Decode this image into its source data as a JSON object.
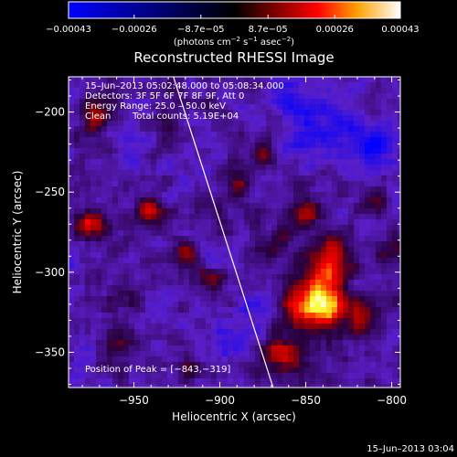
{
  "chart_data": {
    "type": "heatmap",
    "title": "Reconstructed RHESSI Image",
    "xlabel": "Heliocentric X (arcsec)",
    "ylabel": "Heliocentric Y (arcsec)",
    "xlim": [
      -988,
      -795
    ],
    "ylim": [
      -372,
      -178
    ],
    "x_ticks": [
      -950,
      -900,
      -850,
      -800
    ],
    "x_tick_labels": [
      "−950",
      "−900",
      "−850",
      "−800"
    ],
    "y_ticks": [
      -350,
      -300,
      -250,
      -200
    ],
    "y_tick_labels": [
      "−350",
      "−300",
      "−250",
      "−200"
    ],
    "colorbar": {
      "range": [
        -0.00043,
        0.00043
      ],
      "tick_values": [
        -0.00043,
        -0.00026,
        -8.7e-05,
        8.7e-05,
        0.00026,
        0.00043
      ],
      "tick_labels": [
        "−0.00043",
        "−0.00026",
        "−8.7e−05",
        "8.7e−05",
        "0.00026",
        "0.00043"
      ],
      "units_prefix": "(photons cm",
      "units_exp1": "−2",
      "units_mid": " s",
      "units_exp2": "−1",
      "units_mid2": " asec",
      "units_exp3": "−2",
      "units_suffix": ")",
      "colors": [
        "#0000ff",
        "#000000",
        "#ff0000",
        "#ffffff"
      ]
    },
    "annotations": {
      "time_range": "15–Jun–2013 05:02:48.000 to 05:08:34.000",
      "detectors": "Detectors: 3F 5F 6F 7F 8F 9F, Att 0",
      "energy": "Energy Range: 25.0 – 50.0 keV",
      "clean": "Clean",
      "counts": "Total counts: 5.19E+04",
      "peak": "Position of Peak = [−843,−319]"
    },
    "limb_line": {
      "x": [
        -927,
        -869
      ],
      "y": [
        -178,
        -372
      ],
      "color": "#ffffff"
    },
    "sources": [
      {
        "x": -843,
        "y": -319,
        "amplitude": 1.0,
        "sigma": 12
      },
      {
        "x": -836,
        "y": -290,
        "amplitude": 0.6,
        "sigma": 9
      },
      {
        "x": -851,
        "y": -262,
        "amplitude": 0.45,
        "sigma": 8
      },
      {
        "x": -817,
        "y": -330,
        "amplitude": 0.45,
        "sigma": 8
      },
      {
        "x": -862,
        "y": -352,
        "amplitude": 0.55,
        "sigma": 9
      },
      {
        "x": -920,
        "y": -288,
        "amplitude": 0.55,
        "sigma": 6
      },
      {
        "x": -905,
        "y": -305,
        "amplitude": 0.3,
        "sigma": 6
      },
      {
        "x": -970,
        "y": -200,
        "amplitude": 0.45,
        "sigma": 7
      },
      {
        "x": -975,
        "y": -270,
        "amplitude": 0.5,
        "sigma": 7
      },
      {
        "x": -940,
        "y": -262,
        "amplitude": 0.45,
        "sigma": 6
      },
      {
        "x": -890,
        "y": -245,
        "amplitude": 0.45,
        "sigma": 6
      },
      {
        "x": -875,
        "y": -225,
        "amplitude": 0.35,
        "sigma": 6
      },
      {
        "x": -868,
        "y": -282,
        "amplitude": 0.35,
        "sigma": 6
      },
      {
        "x": -955,
        "y": -315,
        "amplitude": 0.3,
        "sigma": 6
      },
      {
        "x": -960,
        "y": -345,
        "amplitude": 0.3,
        "sigma": 6
      },
      {
        "x": -810,
        "y": -255,
        "amplitude": 0.3,
        "sigma": 6
      },
      {
        "x": -800,
        "y": -290,
        "amplitude": 0.3,
        "sigma": 6
      },
      {
        "x": -915,
        "y": -360,
        "amplitude": 0.25,
        "sigma": 6
      },
      {
        "x": -930,
        "y": -210,
        "amplitude": 0.25,
        "sigma": 6
      },
      {
        "x": -840,
        "y": -210,
        "amplitude": -0.35,
        "sigma": 14
      },
      {
        "x": -812,
        "y": -225,
        "amplitude": -0.35,
        "sigma": 10
      },
      {
        "x": -860,
        "y": -190,
        "amplitude": -0.25,
        "sigma": 9
      },
      {
        "x": -900,
        "y": -340,
        "amplitude": -0.15,
        "sigma": 10
      },
      {
        "x": -880,
        "y": -320,
        "amplitude": -0.12,
        "sigma": 8
      }
    ],
    "noise_amplitude": 0.16,
    "noise_seed": 7
  },
  "footer": {
    "timestamp": "15–Jun–2013 03:04"
  }
}
